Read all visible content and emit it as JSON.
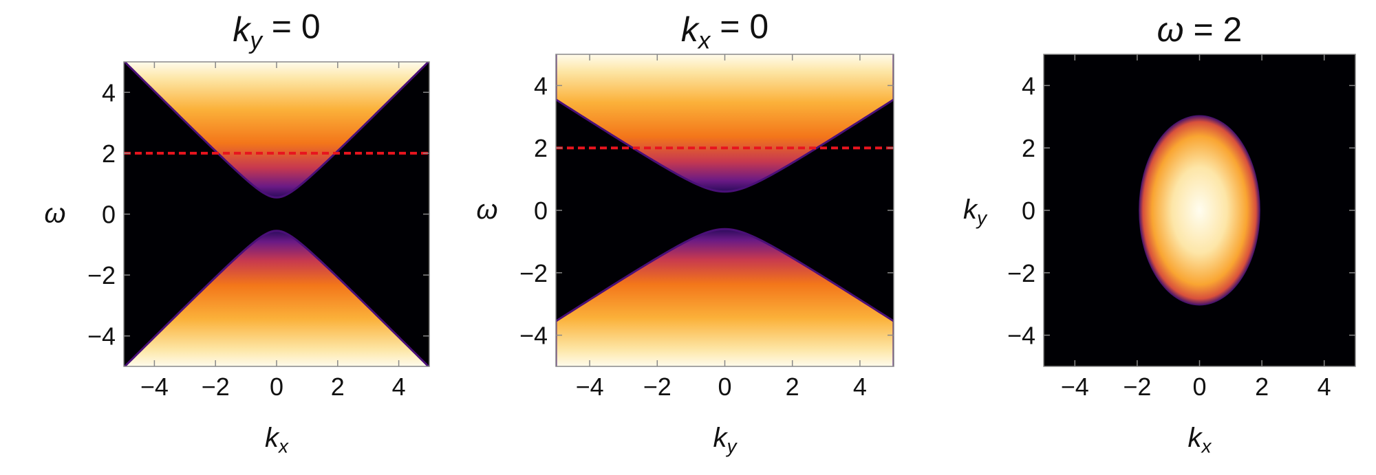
{
  "chart_data": [
    {
      "type": "density",
      "title": {
        "variable": "k",
        "subscript": "y",
        "text": " = 0"
      },
      "x_label": {
        "variable": "k",
        "subscript": "x"
      },
      "y_label": {
        "variable": "ω"
      },
      "xlim": [
        -5,
        5
      ],
      "ylim": [
        -5,
        5
      ],
      "xticks": [
        {
          "value": -4,
          "label": "−4"
        },
        {
          "value": -2,
          "label": "−2"
        },
        0,
        2,
        4
      ],
      "yticks": [
        {
          "value": -4,
          "label": "−4"
        },
        {
          "value": -2,
          "label": "−2"
        },
        0,
        2,
        4
      ],
      "reference_line": {
        "y": 2,
        "color": "#e8141e"
      }
    },
    {
      "type": "density",
      "title": {
        "variable": "k",
        "subscript": "x",
        "text": " = 0"
      },
      "x_label": {
        "variable": "k",
        "subscript": "y"
      },
      "y_label": {
        "variable": "ω"
      },
      "xlim": [
        -5,
        5
      ],
      "ylim": [
        -5,
        5
      ],
      "xticks": [
        {
          "value": -4,
          "label": "−4"
        },
        {
          "value": -2,
          "label": "−2"
        },
        0,
        2,
        4
      ],
      "yticks": [
        {
          "value": -4,
          "label": "−4"
        },
        {
          "value": -2,
          "label": "−2"
        },
        0,
        2,
        4
      ],
      "reference_line": {
        "y": 2,
        "color": "#e8141e"
      }
    },
    {
      "type": "density",
      "title": {
        "variable": "ω",
        "text": " = 2"
      },
      "x_label": {
        "variable": "k",
        "subscript": "x"
      },
      "y_label": {
        "variable": "k",
        "subscript": "y"
      },
      "xlim": [
        -5,
        5
      ],
      "ylim": [
        -5,
        5
      ],
      "xticks": [
        {
          "value": -4,
          "label": "−4"
        },
        {
          "value": -2,
          "label": "−2"
        },
        0,
        2,
        4
      ],
      "yticks": [
        {
          "value": -4,
          "label": "−4"
        },
        {
          "value": -2,
          "label": "−2"
        },
        0,
        2,
        4
      ]
    }
  ]
}
